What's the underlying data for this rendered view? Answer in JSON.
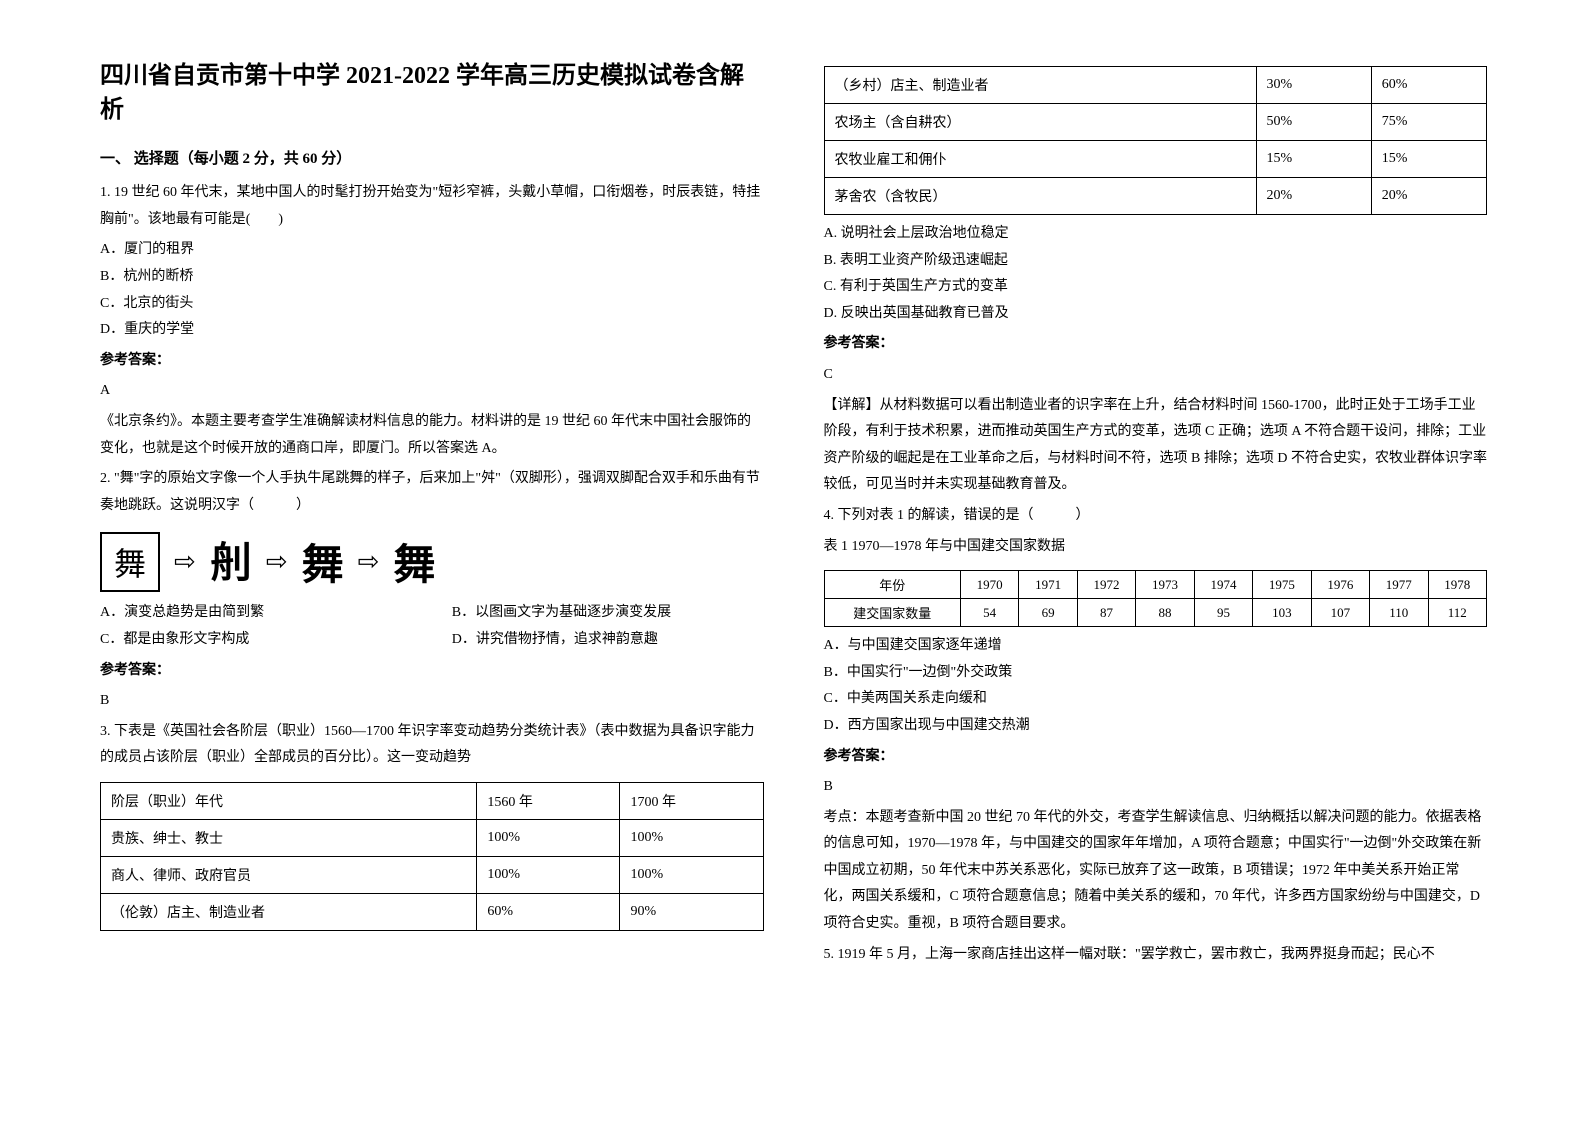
{
  "title": "四川省自贡市第十中学 2021-2022 学年高三历史模拟试卷含解析",
  "section1_heading": "一、 选择题（每小题 2 分，共 60 分）",
  "q1": {
    "stem": "1. 19 世纪 60 年代末，某地中国人的时髦打扮开始变为\"短衫窄裤，头戴小草帽，口衔烟卷，时辰表链，特挂胸前\"。该地最有可能是(　　)",
    "a": "A．厦门的租界",
    "b": "B．杭州的断桥",
    "c": "C．北京的街头",
    "d": "D．重庆的学堂",
    "answer_label": "参考答案：",
    "answer": "A",
    "explain": "《北京条约》。本题主要考查学生准确解读材料信息的能力。材料讲的是 19 世纪 60 年代末中国社会服饰的变化，也就是这个时候开放的通商口岸，即厦门。所以答案选 A。"
  },
  "q2": {
    "stem": "2. \"舞\"字的原始文字像一个人手执牛尾跳舞的样子，后来加上\"舛\"（双脚形），强调双脚配合双手和乐曲有节奏地跳跃。这说明汉字（　　　）",
    "glyphs": [
      "舞",
      "⇨",
      "𦨉",
      "⇨",
      "舞",
      "⇨",
      "舞"
    ],
    "a": "A．演变总趋势是由简到繁",
    "b": "B．以图画文字为基础逐步演变发展",
    "c": "C．都是由象形文字构成",
    "d": "D．讲究借物抒情，追求神韵意趣",
    "answer_label": "参考答案：",
    "answer": "B"
  },
  "q3": {
    "stem": "3. 下表是《英国社会各阶层（职业）1560—1700 年识字率变动趋势分类统计表》（表中数据为具备识字能力的成员占该阶层（职业）全部成员的百分比）。这一变动趋势",
    "table_header": [
      "阶层（职业）年代",
      "1560 年",
      "1700 年"
    ],
    "table_rows": [
      [
        "贵族、绅士、教士",
        "100%",
        "100%"
      ],
      [
        "商人、律师、政府官员",
        "100%",
        "100%"
      ],
      [
        "（伦敦）店主、制造业者",
        "60%",
        "90%"
      ],
      [
        "（乡村）店主、制造业者",
        "30%",
        "60%"
      ],
      [
        "农场主（含自耕农）",
        "50%",
        "75%"
      ],
      [
        "农牧业雇工和佣仆",
        "15%",
        "15%"
      ],
      [
        "茅舍农（含牧民）",
        "20%",
        "20%"
      ]
    ],
    "a": "A. 说明社会上层政治地位稳定",
    "b": "B. 表明工业资产阶级迅速崛起",
    "c": "C. 有利于英国生产方式的变革",
    "d": "D. 反映出英国基础教育已普及",
    "answer_label": "参考答案：",
    "answer": "C",
    "explain": "【详解】从材料数据可以看出制造业者的识字率在上升，结合材料时间 1560-1700，此时正处于工场手工业阶段，有利于技术积累，进而推动英国生产方式的变革，选项 C 正确；选项 A 不符合题干设问，排除；工业资产阶级的崛起是在工业革命之后，与材料时间不符，选项 B 排除；选项 D 不符合史实，农牧业群体识字率较低，可见当时并未实现基础教育普及。"
  },
  "q4": {
    "stem": "4. 下列对表 1 的解读，错误的是（　　　）",
    "subtitle": "表 1 1970—1978 年与中国建交国家数据",
    "table_header": [
      "年份",
      "1970",
      "1971",
      "1972",
      "1973",
      "1974",
      "1975",
      "1976",
      "1977",
      "1978"
    ],
    "table_row": [
      "建交国家数量",
      "54",
      "69",
      "87",
      "88",
      "95",
      "103",
      "107",
      "110",
      "112"
    ],
    "a": "A．与中国建交国家逐年递增",
    "b": "B．中国实行\"一边倒\"外交政策",
    "c": "C．中美两国关系走向缓和",
    "d": "D．西方国家出现与中国建交热潮",
    "answer_label": "参考答案：",
    "answer": "B",
    "explain": "考点：本题考查新中国 20 世纪 70 年代的外交，考查学生解读信息、归纳概括以解决问题的能力。依据表格的信息可知，1970—1978 年，与中国建交的国家年年增加，A 项符合题意；中国实行\"一边倒\"外交政策在新中国成立初期，50 年代末中苏关系恶化，实际已放弃了这一政策，B 项错误；1972 年中美关系开始正常化，两国关系缓和，C 项符合题意信息；随着中美关系的缓和，70 年代，许多西方国家纷纷与中国建交，D 项符合史实。重视，B 项符合题目要求。"
  },
  "q5": {
    "stem": "5. 1919 年 5 月，上海一家商店挂出这样一幅对联：\"罢学救亡，罢市救亡，我两界挺身而起；民心不"
  }
}
